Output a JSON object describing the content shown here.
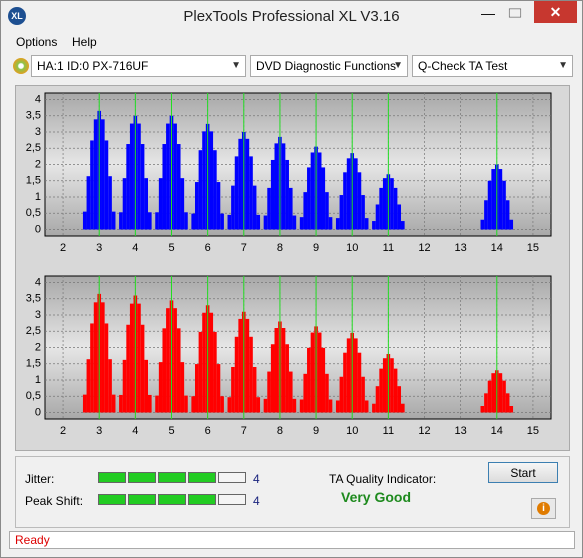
{
  "window": {
    "title": "PlexTools Professional XL V3.16",
    "icon": "XL"
  },
  "menu": [
    "Options",
    "Help"
  ],
  "selectors": [
    "HA:1 ID:0  PX-716UF",
    "DVD Diagnostic Functions",
    "Q-Check TA Test"
  ],
  "charts": [
    {
      "type": "bar",
      "color": "#0000ff",
      "grid": true,
      "xlim": [
        1.5,
        15.5
      ],
      "ylim": [
        -0.2,
        4.2
      ],
      "xticks": [
        2,
        3,
        4,
        5,
        6,
        7,
        8,
        9,
        10,
        11,
        12,
        13,
        14,
        15
      ],
      "yticks": [
        0,
        {
          "value": 0.5,
          "label": "0,5"
        },
        1,
        {
          "value": 1.5,
          "label": "1,5"
        },
        2,
        {
          "value": 2.5,
          "label": "2,5"
        },
        3,
        {
          "value": 3.5,
          "label": "3,5"
        },
        4
      ],
      "reference_lines": [
        3,
        4,
        5,
        6,
        7,
        8,
        9,
        10,
        11,
        14
      ],
      "x": [
        2.6,
        2.7,
        2.8,
        2.9,
        3,
        3.1,
        3.2,
        3.3,
        3.4,
        3.6,
        3.7,
        3.8,
        3.9,
        4,
        4.1,
        4.2,
        4.3,
        4.4,
        4.6,
        4.7,
        4.8,
        4.9,
        5,
        5.1,
        5.2,
        5.3,
        5.4,
        5.6,
        5.7,
        5.8,
        5.9,
        6,
        6.1,
        6.2,
        6.3,
        6.4,
        6.6,
        6.7,
        6.8,
        6.9,
        7,
        7.1,
        7.2,
        7.3,
        7.4,
        7.6,
        7.7,
        7.8,
        7.9,
        8,
        8.1,
        8.2,
        8.3,
        8.4,
        8.6,
        8.7,
        8.8,
        8.9,
        9,
        9.1,
        9.2,
        9.3,
        9.4,
        9.6,
        9.7,
        9.8,
        9.9,
        10,
        10.1,
        10.2,
        10.3,
        10.4,
        10.6,
        10.7,
        10.8,
        10.9,
        11,
        11.1,
        11.2,
        11.3,
        11.4,
        13.6,
        13.7,
        13.8,
        13.9,
        14,
        14.1,
        14.2,
        14.3,
        14.4
      ],
      "values": [
        0.55,
        1.64,
        2.74,
        3.39,
        3.65,
        3.39,
        2.74,
        1.64,
        0.55,
        0.53,
        1.58,
        2.63,
        3.26,
        3.5,
        3.26,
        2.63,
        1.58,
        0.53,
        0.53,
        1.58,
        2.63,
        3.26,
        3.5,
        3.26,
        2.63,
        1.58,
        0.53,
        0.49,
        1.46,
        2.44,
        3.02,
        3.25,
        3.02,
        2.44,
        1.46,
        0.49,
        0.45,
        1.35,
        2.25,
        2.79,
        3.0,
        2.79,
        2.25,
        1.35,
        0.45,
        0.43,
        1.28,
        2.14,
        2.65,
        2.85,
        2.65,
        2.14,
        1.28,
        0.43,
        0.38,
        1.15,
        1.91,
        2.37,
        2.55,
        2.37,
        1.91,
        1.15,
        0.38,
        0.35,
        1.06,
        1.76,
        2.19,
        2.35,
        2.19,
        1.76,
        1.06,
        0.35,
        0.26,
        0.77,
        1.28,
        1.58,
        1.7,
        1.58,
        1.28,
        0.77,
        0.26,
        0.3,
        0.9,
        1.5,
        1.86,
        2.0,
        1.86,
        1.5,
        0.9,
        0.3
      ]
    },
    {
      "type": "bar",
      "color": "#ff0000",
      "grid": true,
      "xlim": [
        1.5,
        15.5
      ],
      "ylim": [
        -0.2,
        4.2
      ],
      "xticks": [
        2,
        3,
        4,
        5,
        6,
        7,
        8,
        9,
        10,
        11,
        12,
        13,
        14,
        15
      ],
      "yticks": [
        0,
        {
          "value": 0.5,
          "label": "0,5"
        },
        1,
        {
          "value": 1.5,
          "label": "1,5"
        },
        2,
        {
          "value": 2.5,
          "label": "2,5"
        },
        3,
        {
          "value": 3.5,
          "label": "3,5"
        },
        4
      ],
      "reference_lines": [
        3,
        4,
        5,
        6,
        7,
        8,
        9,
        10,
        11,
        14
      ],
      "x": [
        2.6,
        2.7,
        2.8,
        2.9,
        3,
        3.1,
        3.2,
        3.3,
        3.4,
        3.6,
        3.7,
        3.8,
        3.9,
        4,
        4.1,
        4.2,
        4.3,
        4.4,
        4.6,
        4.7,
        4.8,
        4.9,
        5,
        5.1,
        5.2,
        5.3,
        5.4,
        5.6,
        5.7,
        5.8,
        5.9,
        6,
        6.1,
        6.2,
        6.3,
        6.4,
        6.6,
        6.7,
        6.8,
        6.9,
        7,
        7.1,
        7.2,
        7.3,
        7.4,
        7.6,
        7.7,
        7.8,
        7.9,
        8,
        8.1,
        8.2,
        8.3,
        8.4,
        8.6,
        8.7,
        8.8,
        8.9,
        9,
        9.1,
        9.2,
        9.3,
        9.4,
        9.6,
        9.7,
        9.8,
        9.9,
        10,
        10.1,
        10.2,
        10.3,
        10.4,
        10.6,
        10.7,
        10.8,
        10.9,
        11,
        11.1,
        11.2,
        11.3,
        11.4,
        13.6,
        13.7,
        13.8,
        13.9,
        14,
        14.1,
        14.2,
        14.3,
        14.4
      ],
      "values": [
        0.55,
        1.64,
        2.74,
        3.39,
        3.65,
        3.39,
        2.74,
        1.64,
        0.55,
        0.54,
        1.62,
        2.7,
        3.35,
        3.6,
        3.35,
        2.7,
        1.62,
        0.54,
        0.52,
        1.55,
        2.59,
        3.21,
        3.45,
        3.21,
        2.59,
        1.55,
        0.52,
        0.5,
        1.49,
        2.48,
        3.07,
        3.3,
        3.07,
        2.48,
        1.49,
        0.5,
        0.47,
        1.4,
        2.33,
        2.88,
        3.1,
        2.88,
        2.33,
        1.4,
        0.47,
        0.42,
        1.26,
        2.1,
        2.6,
        2.8,
        2.6,
        2.1,
        1.26,
        0.42,
        0.4,
        1.19,
        1.99,
        2.46,
        2.65,
        2.46,
        1.99,
        1.19,
        0.4,
        0.37,
        1.1,
        1.84,
        2.28,
        2.45,
        2.28,
        1.84,
        1.1,
        0.37,
        0.27,
        0.81,
        1.35,
        1.67,
        1.8,
        1.67,
        1.35,
        0.81,
        0.27,
        0.2,
        0.59,
        0.98,
        1.21,
        1.3,
        1.21,
        0.98,
        0.59,
        0.2
      ]
    }
  ],
  "indicators": [
    {
      "label": "Jitter:",
      "value": 4
    },
    {
      "label": "Peak Shift:",
      "value": 4
    }
  ],
  "quality": {
    "label": "TA Quality Indicator:",
    "value": "Very Good"
  },
  "button": "Start",
  "status": "Ready"
}
